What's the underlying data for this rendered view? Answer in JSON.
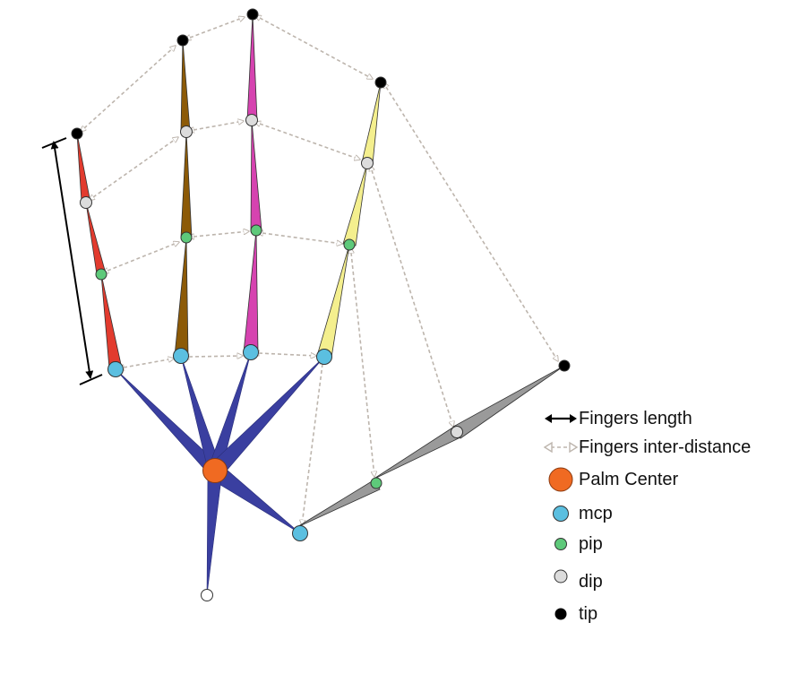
{
  "legend": {
    "fingers_length": "Fingers length",
    "fingers_inter_distance": "Fingers inter-distance",
    "palm_center": "Palm Center",
    "mcp": "mcp",
    "pip": "pip",
    "dip": "dip",
    "tip": "tip"
  },
  "colors": {
    "palm": "#3a3fa0",
    "palm_center": "#f06a22",
    "mcp": "#5bbfe0",
    "pip": "#5ec97a",
    "dip": "#dcdcdc",
    "tip": "#000000",
    "finger_index": "#e23b2e",
    "finger_middle": "#8c5a07",
    "finger_ring": "#d643b0",
    "finger_little": "#f4ef8e",
    "thumb": "#9a9a9a",
    "inter_distance": "#bdb5ad",
    "fingers_length": "#000000"
  },
  "icons": {
    "fingers_length": "double-arrow-icon",
    "fingers_inter_distance": "dashed-double-arrow-icon"
  }
}
